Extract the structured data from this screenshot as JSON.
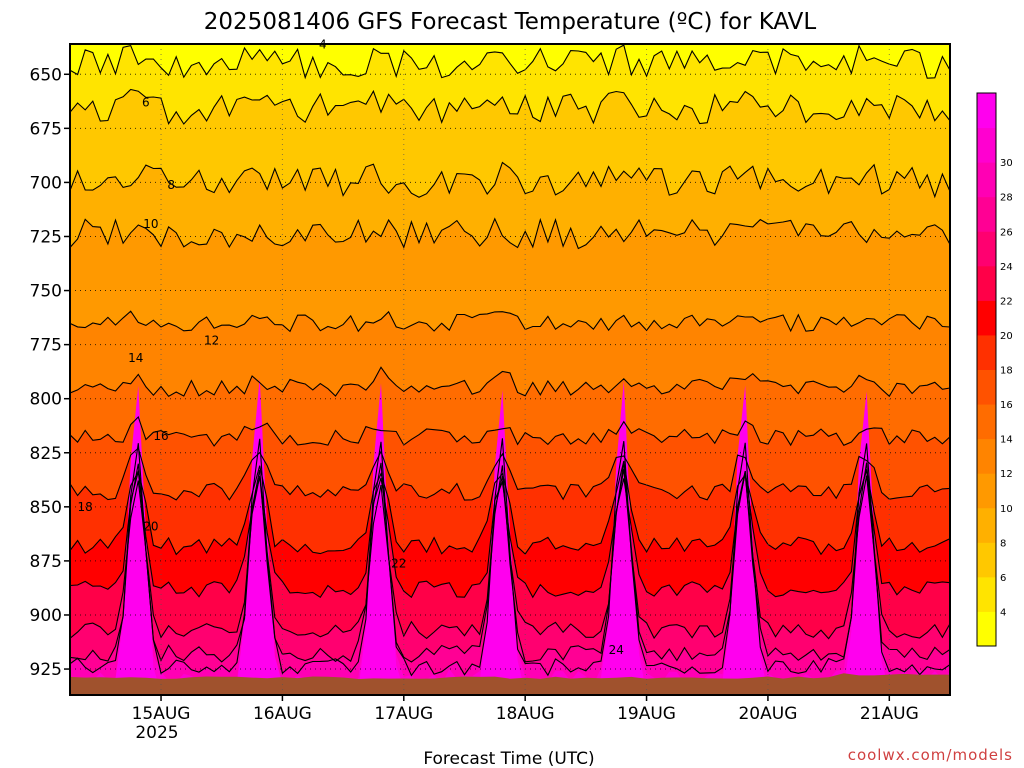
{
  "chart_data": {
    "type": "heatmap",
    "title": "2025081406 GFS Forecast Temperature (ºC) for KAVL",
    "xlabel": "Forecast Time (UTC)",
    "ylabel": "",
    "y_axis": {
      "ticks": [
        650,
        675,
        700,
        725,
        750,
        775,
        800,
        825,
        850,
        875,
        900,
        925
      ],
      "range": [
        636,
        937
      ],
      "direction": "pressure decreasing upward"
    },
    "x_axis": {
      "ticks": [
        "15AUG",
        "16AUG",
        "17AUG",
        "18AUG",
        "19AUG",
        "20AUG",
        "21AUG"
      ],
      "year_label": "2025",
      "range_hours_from_init": [
        0,
        174
      ]
    },
    "colorbar": {
      "ticks": [
        4,
        6,
        8,
        10,
        12,
        14,
        16,
        18,
        20,
        22,
        24,
        26,
        28,
        30
      ],
      "colors": [
        "#ffff00",
        "#ffe400",
        "#ffc800",
        "#ffb000",
        "#ff9900",
        "#ff8400",
        "#ff6c00",
        "#ff5200",
        "#ff3000",
        "#ff0000",
        "#ff0048",
        "#ff0070",
        "#ff0094",
        "#ff00b4",
        "#ff00d0",
        "#ff00ee"
      ]
    },
    "isotherms": [
      {
        "value": 4,
        "label_hour_from_init": 50,
        "label_pressure": 638
      },
      {
        "value": 6,
        "label_hour_from_init": 15,
        "label_pressure": 665
      },
      {
        "value": 8,
        "label_hour_from_init": 20,
        "label_pressure": 703
      },
      {
        "value": 10,
        "label_hour_from_init": 16,
        "label_pressure": 721
      },
      {
        "value": 12,
        "label_hour_from_init": 28,
        "label_pressure": 775
      },
      {
        "value": 14,
        "label_hour_from_init": 13,
        "label_pressure": 783
      },
      {
        "value": 16,
        "label_hour_from_init": 18,
        "label_pressure": 819
      },
      {
        "value": 18,
        "label_hour_from_init": 3,
        "label_pressure": 852
      },
      {
        "value": 20,
        "label_hour_from_init": 16,
        "label_pressure": 861
      },
      {
        "value": 22,
        "label_hour_from_init": 65,
        "label_pressure": 878
      },
      {
        "value": 24,
        "label_hour_from_init": 108,
        "label_pressure": 918
      }
    ]
  },
  "credit": "coolwx.com/models",
  "colors": {
    "ground": "#a0522d",
    "background": "#ffffff",
    "credit": "#d04040"
  }
}
